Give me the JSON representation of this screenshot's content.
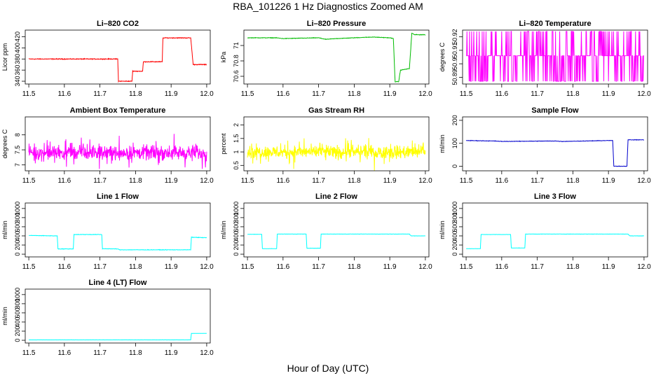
{
  "title": "RBA_101226  1 Hz Diagnostics Zoomed AM",
  "x_axis_label": "Hour of Day (UTC)",
  "chart_data": [
    {
      "type": "line",
      "title": "Li–820 CO2",
      "ylabel": "Licor ppm",
      "color": "#ff0000",
      "xlim": [
        11.49,
        12.01
      ],
      "ylim": [
        335,
        432
      ],
      "xticks": [
        "11.5",
        "11.6",
        "11.7",
        "11.8",
        "11.9",
        "12.0"
      ],
      "yticks": [
        340,
        360,
        380,
        400,
        420
      ],
      "noise": 1.0,
      "x": [
        11.5,
        11.75,
        11.752,
        11.79,
        11.792,
        11.82,
        11.822,
        11.875,
        11.877,
        11.955,
        11.962,
        12.0
      ],
      "y": [
        380,
        380,
        340,
        340,
        358,
        358,
        375,
        375,
        418,
        418,
        370,
        370
      ]
    },
    {
      "type": "line",
      "title": "Li–820 Pressure",
      "ylabel": "kPa",
      "color": "#00bb00",
      "xlim": [
        11.49,
        12.01
      ],
      "ylim": [
        70.5,
        71.2
      ],
      "xticks": [
        "11.5",
        "11.6",
        "11.7",
        "11.8",
        "11.9",
        "12.0"
      ],
      "yticks": [
        70.6,
        70.8,
        71.0
      ],
      "noise": 0.005,
      "x": [
        11.5,
        11.58,
        11.6,
        11.7,
        11.72,
        11.75,
        11.8,
        11.85,
        11.9,
        11.91,
        11.915,
        11.925,
        11.93,
        11.955,
        11.962,
        11.97,
        12.0
      ],
      "y": [
        71.1,
        71.1,
        71.09,
        71.1,
        71.08,
        71.09,
        71.1,
        71.11,
        71.1,
        71.09,
        70.53,
        70.53,
        70.68,
        70.7,
        71.16,
        71.14,
        71.14
      ]
    },
    {
      "type": "line",
      "title": "Li–820 Temperature",
      "ylabel": "degrees C",
      "color": "#ff00ff",
      "xlim": [
        11.49,
        12.01
      ],
      "ylim": [
        50.885,
        50.925
      ],
      "xticks": [
        "11.5",
        "11.6",
        "11.7",
        "11.8",
        "11.9",
        "12.0"
      ],
      "yticks": [
        50.89,
        50.9,
        50.91,
        50.92
      ],
      "levels": [
        50.887,
        50.906,
        50.924
      ],
      "x_range": [
        11.5,
        12.0
      ]
    },
    {
      "type": "line",
      "title": "Ambient Box Temperature",
      "ylabel": "degrees C",
      "color": "#ff00ff",
      "xlim": [
        11.49,
        12.01
      ],
      "ylim": [
        6.8,
        8.6
      ],
      "xticks": [
        "11.5",
        "11.6",
        "11.7",
        "11.8",
        "11.9",
        "12.0"
      ],
      "yticks": [
        7.0,
        7.5,
        8.0
      ],
      "center": 7.4,
      "spread": 0.35,
      "x_range": [
        11.5,
        12.0
      ]
    },
    {
      "type": "line",
      "title": "Gas Stream RH",
      "ylabel": "percent",
      "color": "#ffff00",
      "xlim": [
        11.49,
        12.01
      ],
      "ylim": [
        0.3,
        2.3
      ],
      "xticks": [
        "11.5",
        "11.6",
        "11.7",
        "11.8",
        "11.9",
        "12.0"
      ],
      "yticks": [
        0.5,
        1.0,
        1.5,
        2.0
      ],
      "center": 1.0,
      "spread": 0.35,
      "x_range": [
        11.5,
        12.0
      ]
    },
    {
      "type": "line",
      "title": "Sample Flow",
      "ylabel": "ml/min",
      "color": "#0000cc",
      "xlim": [
        11.49,
        12.01
      ],
      "ylim": [
        -20,
        215
      ],
      "xticks": [
        "11.5",
        "11.6",
        "11.7",
        "11.8",
        "11.9",
        "12.0"
      ],
      "yticks": [
        0,
        100,
        200
      ],
      "noise": 1.5,
      "x": [
        11.5,
        11.58,
        11.6,
        11.75,
        11.77,
        11.9,
        11.912,
        11.915,
        11.952,
        11.955,
        12.0
      ],
      "y": [
        112,
        110,
        108,
        110,
        108,
        112,
        112,
        0,
        0,
        115,
        115
      ]
    },
    {
      "type": "line",
      "title": "Line 1 Flow",
      "ylabel": "ml/min",
      "color": "#00ffff",
      "xlim": [
        11.49,
        12.01
      ],
      "ylim": [
        -60,
        1120
      ],
      "xticks": [
        "11.5",
        "11.6",
        "11.7",
        "11.8",
        "11.9",
        "12.0"
      ],
      "yticks": [
        0,
        200,
        400,
        600,
        800,
        1000
      ],
      "noise": 8,
      "x": [
        11.5,
        11.58,
        11.582,
        11.625,
        11.627,
        11.705,
        11.707,
        11.75,
        11.755,
        11.955,
        11.957,
        12.0
      ],
      "y": [
        410,
        400,
        115,
        115,
        430,
        430,
        120,
        115,
        95,
        95,
        370,
        360
      ]
    },
    {
      "type": "line",
      "title": "Line 2 Flow",
      "ylabel": "ml/min",
      "color": "#00ffff",
      "xlim": [
        11.49,
        12.01
      ],
      "ylim": [
        -60,
        1120
      ],
      "xticks": [
        "11.5",
        "11.6",
        "11.7",
        "11.8",
        "11.9",
        "12.0"
      ],
      "yticks": [
        0,
        200,
        400,
        600,
        800,
        1000
      ],
      "noise": 4,
      "x": [
        11.5,
        11.54,
        11.542,
        11.582,
        11.584,
        11.665,
        11.667,
        11.705,
        11.707,
        11.955,
        11.96,
        12.0
      ],
      "y": [
        435,
        435,
        120,
        120,
        440,
        440,
        130,
        130,
        440,
        440,
        400,
        400
      ]
    },
    {
      "type": "line",
      "title": "Line 3 Flow",
      "ylabel": "ml/min",
      "color": "#00ffff",
      "xlim": [
        11.49,
        12.01
      ],
      "ylim": [
        -60,
        1120
      ],
      "xticks": [
        "11.5",
        "11.6",
        "11.7",
        "11.8",
        "11.9",
        "12.0"
      ],
      "yticks": [
        0,
        200,
        400,
        600,
        800,
        1000
      ],
      "noise": 4,
      "x": [
        11.5,
        11.54,
        11.542,
        11.625,
        11.627,
        11.665,
        11.667,
        11.955,
        11.96,
        12.0
      ],
      "y": [
        120,
        120,
        430,
        430,
        135,
        135,
        440,
        440,
        400,
        400
      ]
    },
    {
      "type": "line",
      "title": "Line 4 (LT) Flow",
      "ylabel": "ml/min",
      "color": "#00ffff",
      "xlim": [
        11.49,
        12.01
      ],
      "ylim": [
        -60,
        1120
      ],
      "xticks": [
        "11.5",
        "11.6",
        "11.7",
        "11.8",
        "11.9",
        "12.0"
      ],
      "yticks": [
        0,
        200,
        400,
        600,
        800,
        1000
      ],
      "noise": 2,
      "x": [
        11.5,
        11.955,
        11.957,
        12.0
      ],
      "y": [
        8,
        8,
        150,
        150
      ]
    }
  ]
}
